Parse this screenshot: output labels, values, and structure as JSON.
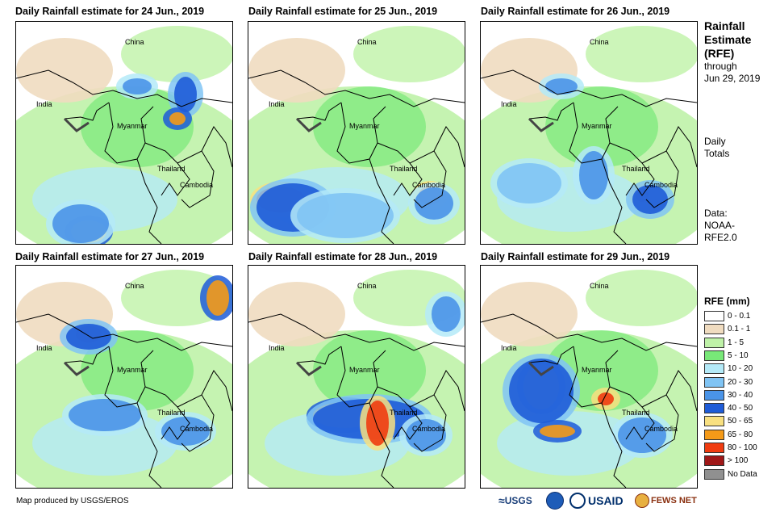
{
  "panels": [
    {
      "title": "Daily Rainfall estimate for 24 Jun., 2019"
    },
    {
      "title": "Daily Rainfall estimate for 25 Jun., 2019"
    },
    {
      "title": "Daily Rainfall estimate for 26 Jun., 2019"
    },
    {
      "title": "Daily Rainfall estimate for 27 Jun., 2019"
    },
    {
      "title": "Daily Rainfall estimate for 28 Jun., 2019"
    },
    {
      "title": "Daily Rainfall estimate for 29 Jun., 2019"
    }
  ],
  "map_labels": {
    "china": "China",
    "india": "India",
    "myanmar": "Myanmar",
    "thailand": "Thailand",
    "cambodia": "Cambodia"
  },
  "sidebar": {
    "title_line1": "Rainfall",
    "title_line2": "Estimate",
    "title_line3": "(RFE)",
    "through": "through",
    "date": "Jun 29, 2019",
    "totals_line1": "Daily",
    "totals_line2": "Totals",
    "data_line1": "Data:",
    "data_line2": "NOAA-",
    "data_line3": "RFE2.0"
  },
  "legend": {
    "title": "RFE (mm)",
    "items": [
      {
        "label": "0 - 0.1",
        "color": "#ffffff"
      },
      {
        "label": "0.1 - 1",
        "color": "#f0dcc0"
      },
      {
        "label": "1 - 5",
        "color": "#bff2a8"
      },
      {
        "label": "5 - 10",
        "color": "#78e878"
      },
      {
        "label": "10 - 20",
        "color": "#b4eaf8"
      },
      {
        "label": "20 - 30",
        "color": "#80c4f4"
      },
      {
        "label": "30 - 40",
        "color": "#4a94e8"
      },
      {
        "label": "40 - 50",
        "color": "#1e5cd8"
      },
      {
        "label": "50 - 65",
        "color": "#f8e080"
      },
      {
        "label": "65 - 80",
        "color": "#f49a18"
      },
      {
        "label": "80 - 100",
        "color": "#f03c10"
      },
      {
        "label": "> 100",
        "color": "#a01818"
      },
      {
        "label": "No Data",
        "color": "#909090"
      }
    ]
  },
  "footer": {
    "credit": "Map produced by USGS/EROS",
    "usgs": "USGS",
    "usaid": "USAID",
    "fewsnet": "FEWS NET"
  }
}
